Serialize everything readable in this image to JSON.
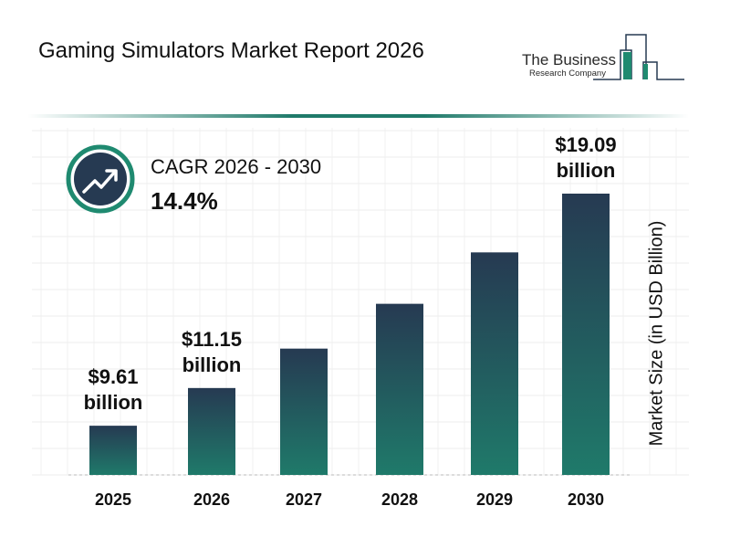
{
  "header": {
    "title": "Gaming Simulators Market Report 2026"
  },
  "logo": {
    "line1": "The Business",
    "line2": "Research Company"
  },
  "cagr": {
    "label": "CAGR 2026 - 2030",
    "value": "14.4%",
    "icon": "trending-up-icon"
  },
  "colors": {
    "bar_top": "#263a52",
    "bar_bottom": "#1f7a6a",
    "accent": "#1f8a70",
    "icon_bg": "#263a52"
  },
  "chart_data": {
    "type": "bar",
    "title": "Gaming Simulators Market Report 2026",
    "categories": [
      "2025",
      "2026",
      "2027",
      "2028",
      "2029",
      "2030"
    ],
    "values": [
      9.61,
      11.15,
      12.76,
      14.59,
      16.69,
      19.09
    ],
    "data_labels": [
      [
        "$9.61",
        "billion"
      ],
      [
        "$11.15",
        "billion"
      ],
      null,
      null,
      null,
      [
        "$19.09",
        "billion"
      ]
    ],
    "xlabel": "",
    "ylabel": "Market Size (in USD Billion)",
    "ylim": [
      7.6,
      19.09
    ],
    "grid": true
  }
}
